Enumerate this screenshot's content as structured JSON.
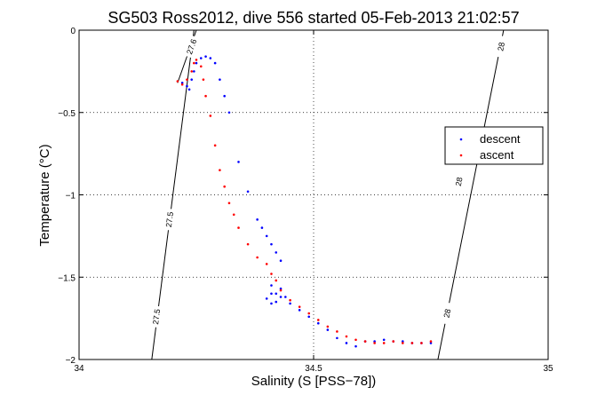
{
  "chart_data": {
    "type": "scatter",
    "title": "SG503 Ross2012, dive 556 started 05-Feb-2013 21:02:57",
    "xlabel": "Salinity (S [PSS−78])",
    "ylabel": "Temperature (°C)",
    "xlim": [
      34,
      35
    ],
    "ylim": [
      -2,
      0
    ],
    "xticks": [
      34,
      34.5,
      35
    ],
    "xtick_labels": [
      "34",
      "34.5",
      "35"
    ],
    "yticks": [
      0,
      -0.5,
      -1,
      -1.5,
      -2
    ],
    "ytick_labels": [
      "0",
      "−0.5",
      "−1",
      "−1.5",
      "−2"
    ],
    "grid": true,
    "legend_position": "right",
    "series": [
      {
        "name": "descent",
        "color": "#0000ff",
        "x": [
          34.22,
          34.23,
          34.235,
          34.24,
          34.245,
          34.25,
          34.26,
          34.27,
          34.28,
          34.29,
          34.3,
          34.31,
          34.32,
          34.34,
          34.36,
          34.38,
          34.39,
          34.4,
          34.41,
          34.42,
          34.43,
          34.41,
          34.42,
          34.43,
          34.42,
          34.41,
          34.4,
          34.41,
          34.43,
          34.44,
          34.45,
          34.47,
          34.49,
          34.51,
          34.53,
          34.55,
          34.57,
          34.59,
          34.61,
          34.63,
          34.65,
          34.67,
          34.69,
          34.71,
          34.73,
          34.75
        ],
        "y": [
          -0.32,
          -0.34,
          -0.36,
          -0.3,
          -0.25,
          -0.2,
          -0.17,
          -0.16,
          -0.17,
          -0.2,
          -0.3,
          -0.4,
          -0.5,
          -0.8,
          -0.98,
          -1.15,
          -1.2,
          -1.25,
          -1.3,
          -1.35,
          -1.4,
          -1.55,
          -1.6,
          -1.62,
          -1.65,
          -1.66,
          -1.63,
          -1.6,
          -1.57,
          -1.62,
          -1.66,
          -1.7,
          -1.74,
          -1.78,
          -1.82,
          -1.87,
          -1.9,
          -1.92,
          -1.89,
          -1.89,
          -1.88,
          -1.89,
          -1.89,
          -1.9,
          -1.9,
          -1.9
        ]
      },
      {
        "name": "ascent",
        "color": "#ff0000",
        "x": [
          34.21,
          34.22,
          34.23,
          34.24,
          34.245,
          34.25,
          34.26,
          34.265,
          34.27,
          34.28,
          34.29,
          34.3,
          34.31,
          34.32,
          34.33,
          34.34,
          34.36,
          34.38,
          34.4,
          34.41,
          34.42,
          34.43,
          34.45,
          34.47,
          34.49,
          34.51,
          34.53,
          34.55,
          34.57,
          34.59,
          34.61,
          34.63,
          34.65,
          34.67,
          34.69,
          34.71,
          34.73,
          34.75
        ],
        "y": [
          -0.31,
          -0.33,
          -0.3,
          -0.25,
          -0.2,
          -0.18,
          -0.22,
          -0.3,
          -0.4,
          -0.52,
          -0.7,
          -0.85,
          -0.95,
          -1.05,
          -1.12,
          -1.2,
          -1.3,
          -1.38,
          -1.42,
          -1.48,
          -1.52,
          -1.58,
          -1.64,
          -1.68,
          -1.72,
          -1.76,
          -1.8,
          -1.83,
          -1.86,
          -1.88,
          -1.89,
          -1.9,
          -1.9,
          -1.89,
          -1.9,
          -1.9,
          -1.9,
          -1.89
        ]
      }
    ],
    "contours": [
      {
        "label": "27.5",
        "line": [
          [
            34.155,
            -2.0
          ],
          [
            34.245,
            0.0
          ]
        ],
        "label_positions": [
          [
            34.193,
            -1.15
          ],
          [
            34.165,
            -1.74
          ]
        ]
      },
      {
        "label": "27.6",
        "line": [
          [
            34.21,
            -0.32
          ],
          [
            34.25,
            0.0
          ]
        ],
        "label_positions": [
          [
            34.24,
            -0.1
          ]
        ]
      },
      {
        "label": "28",
        "line": [
          [
            34.765,
            -2.0
          ],
          [
            34.905,
            0.0
          ]
        ],
        "label_positions": [
          [
            34.81,
            -0.92
          ],
          [
            34.785,
            -1.72
          ],
          [
            34.9,
            -0.1
          ]
        ]
      }
    ]
  }
}
